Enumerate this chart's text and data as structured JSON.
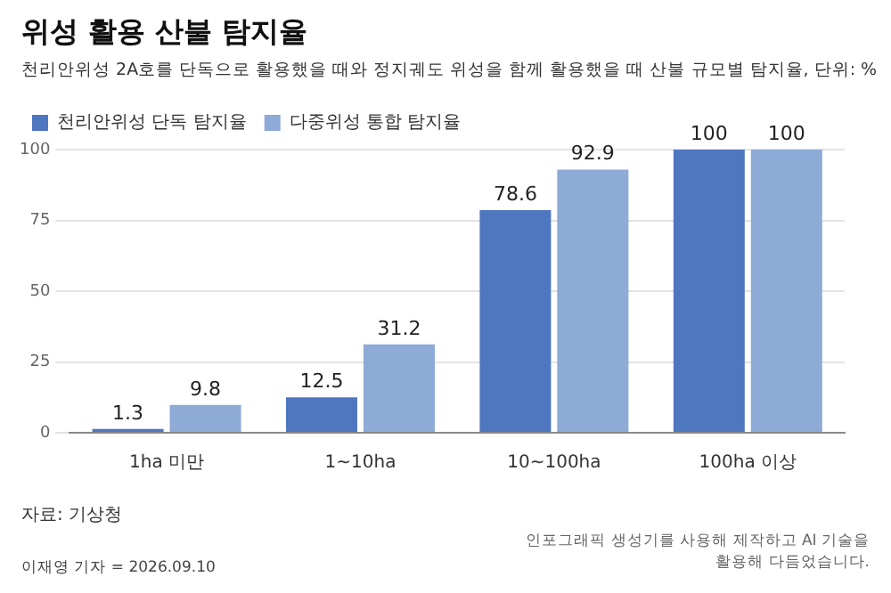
{
  "chart_data": {
    "type": "bar",
    "title": "위성 활용 산불 탐지율",
    "subtitle": "천리안위성 2A호를 단독으로 활용했을 때와 정지궤도 위성을 함께 활용했을 때 산불 규모별 탐지율, 단위: %",
    "categories": [
      "1ha 미만",
      "1~10ha",
      "10~100ha",
      "100ha 이상"
    ],
    "series": [
      {
        "name": "천리안위성 단독 탐지율",
        "color": "#4f77c0",
        "values": [
          1.3,
          12.5,
          78.6,
          100
        ]
      },
      {
        "name": "다중위성 통합 탐지율",
        "color": "#8eaad6",
        "values": [
          9.8,
          31.2,
          92.9,
          100
        ]
      }
    ],
    "ylim": [
      0,
      100
    ],
    "yticks": [
      0,
      25,
      50,
      75,
      100
    ],
    "grid": "y",
    "legend": "top left",
    "data_labels": true,
    "annotations": [
      "자료: 기상청",
      "이재영 기자 = 2026.09.10",
      "인포그래픽 생성기를 사용해 제작하고 AI 기술을 활용해 다듬었습니다."
    ]
  }
}
